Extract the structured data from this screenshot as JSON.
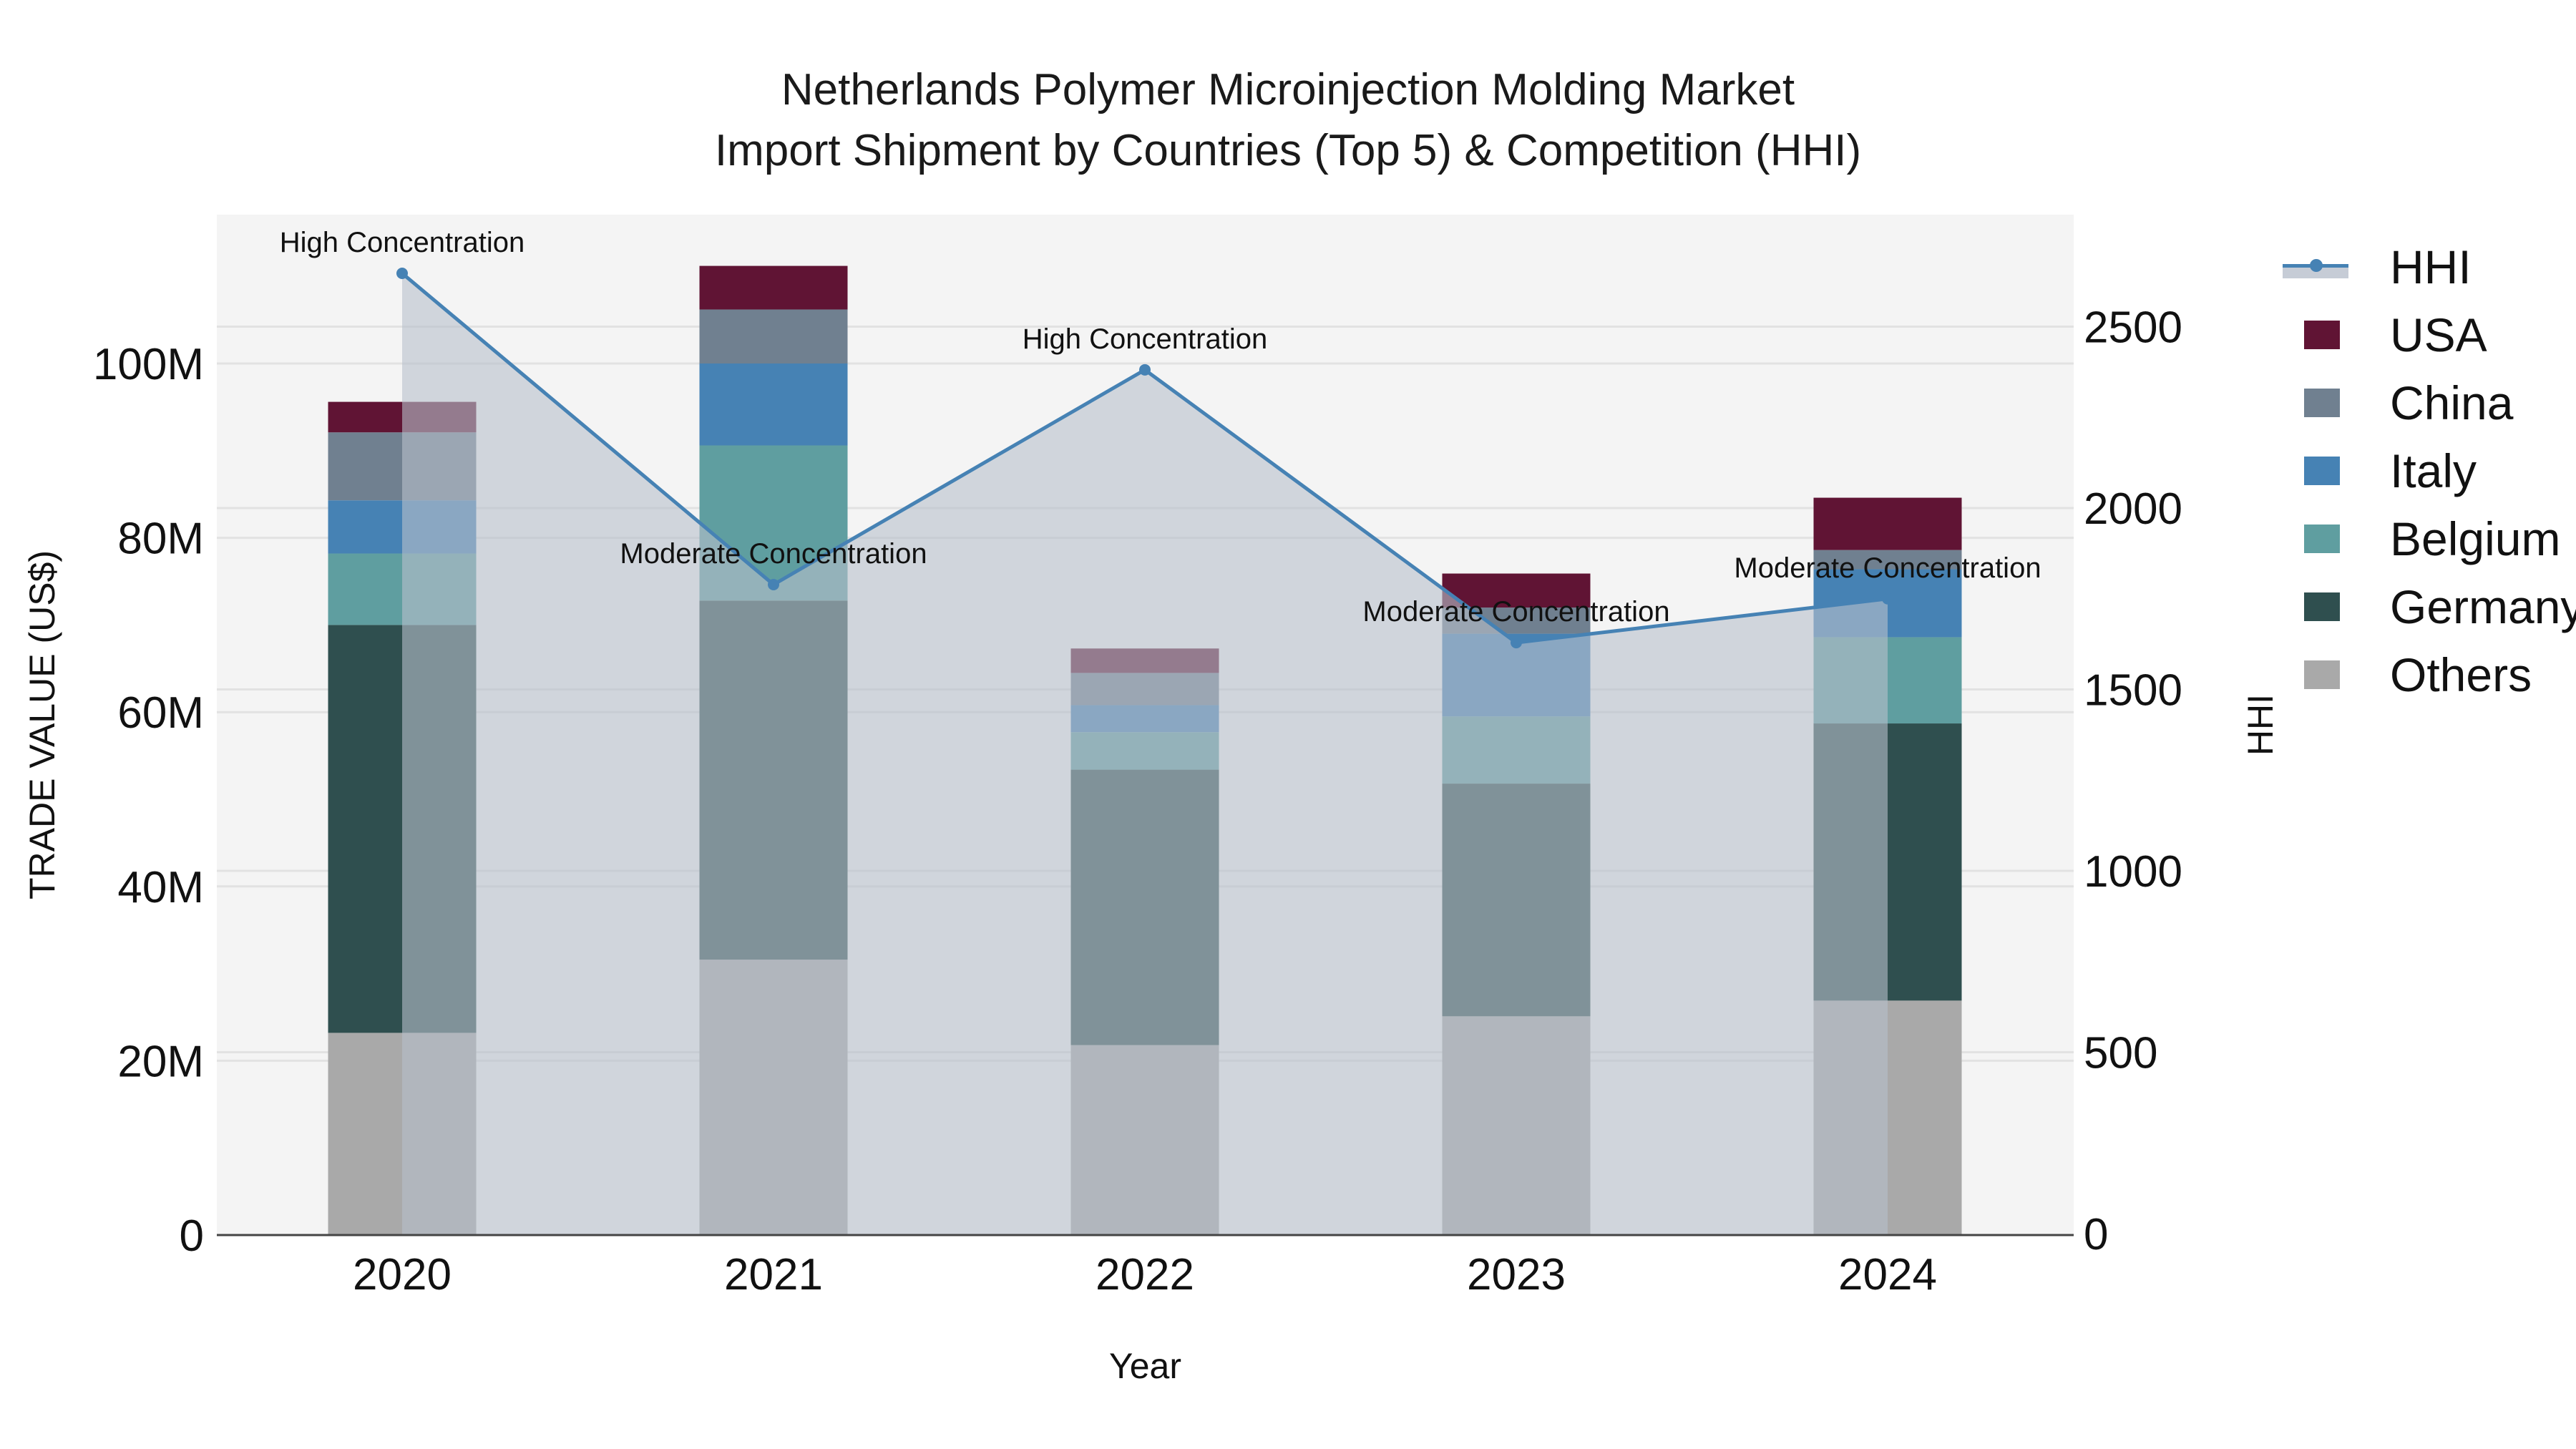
{
  "title": {
    "line1": "Netherlands Polymer Microinjection Molding Market",
    "line2": "Import Shipment by Countries (Top 5) & Competition (HHI)"
  },
  "axes": {
    "xlabel": "Year",
    "ylabel_left": "TRADE VALUE (US$)",
    "ylabel_right": "HHI",
    "left_ticks": [
      "0",
      "20M",
      "40M",
      "60M",
      "80M",
      "100M"
    ],
    "right_ticks": [
      "0",
      "500",
      "1000",
      "1500",
      "2000",
      "2500"
    ]
  },
  "legend": {
    "items": [
      {
        "label": "HHI",
        "type": "line",
        "color": "#4682b4"
      },
      {
        "label": "USA",
        "type": "bar",
        "color": "#601434"
      },
      {
        "label": "China",
        "type": "bar",
        "color": "#708090"
      },
      {
        "label": "Italy",
        "type": "bar",
        "color": "#4682b4"
      },
      {
        "label": "Belgium",
        "type": "bar",
        "color": "#5f9ea0"
      },
      {
        "label": "Germany",
        "type": "bar",
        "color": "#2f4f4f"
      },
      {
        "label": "Others",
        "type": "bar",
        "color": "#a9a9a9"
      }
    ]
  },
  "chart_data": {
    "type": "bar",
    "stacked": true,
    "title": "Netherlands Polymer Microinjection Molding Market Import Shipment by Countries (Top 5) & Competition (HHI)",
    "xlabel": "Year",
    "ylabel": "TRADE VALUE (US$)",
    "y2label": "HHI",
    "categories": [
      "2020",
      "2021",
      "2022",
      "2023",
      "2024"
    ],
    "ylim": [
      0,
      117000000
    ],
    "y2lim": [
      0,
      2810
    ],
    "series": [
      {
        "name": "Others",
        "color": "#a9a9a9",
        "values": [
          23200000,
          31600000,
          21800000,
          25100000,
          26900000
        ]
      },
      {
        "name": "Germany",
        "color": "#2f4f4f",
        "values": [
          46800000,
          41200000,
          31600000,
          26700000,
          31800000
        ]
      },
      {
        "name": "Belgium",
        "color": "#5f9ea0",
        "values": [
          8200000,
          17800000,
          4300000,
          7700000,
          9900000
        ]
      },
      {
        "name": "Italy",
        "color": "#4682b4",
        "values": [
          6100000,
          9400000,
          3100000,
          9500000,
          7800000
        ]
      },
      {
        "name": "China",
        "color": "#708090",
        "values": [
          7800000,
          6200000,
          3700000,
          3000000,
          2200000
        ]
      },
      {
        "name": "USA",
        "color": "#601434",
        "values": [
          3500000,
          5000000,
          2800000,
          3900000,
          6000000
        ]
      }
    ],
    "line_series": {
      "name": "HHI",
      "axis": "right",
      "type": "line+area",
      "color": "#4682b4",
      "values": [
        2647,
        1789,
        2381,
        1629,
        1750
      ],
      "annotations": [
        "High Concentration",
        "Moderate Concentration",
        "High Concentration",
        "Moderate Concentration",
        "Moderate Concentration"
      ]
    },
    "grid": true,
    "legend_position": "right"
  }
}
